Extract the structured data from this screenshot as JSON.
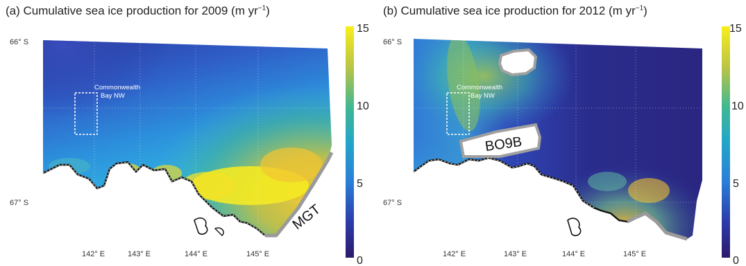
{
  "panels": [
    {
      "id": "a",
      "title_main": "(a) Cumulative sea ice production for 2009 (m yr",
      "title_sup": "−1",
      "title_end": ")",
      "lat_labels": [
        "66° S",
        "67° S"
      ],
      "lon_labels": [
        "142° E",
        "143° E",
        "144° E",
        "145° E"
      ],
      "region_label_1": "Commonwealth",
      "region_label_2": "Bay NW",
      "glacier_label": "MGT",
      "colorbar_ticks": [
        "15",
        "10",
        "5",
        "0"
      ]
    },
    {
      "id": "b",
      "title_main": "(b) Cumulative sea ice production for 2012 (m yr",
      "title_sup": "−1",
      "title_end": ")",
      "lat_labels": [
        "66° S",
        "67° S"
      ],
      "lon_labels": [
        "142° E",
        "143° E",
        "144° E",
        "145° E"
      ],
      "region_label_1": "Commonwealth",
      "region_label_2": "Bay NW",
      "iceberg_label": "BO9B",
      "colorbar_ticks": [
        "15",
        "10",
        "5",
        "0"
      ]
    }
  ],
  "colorbar": {
    "min": 0,
    "max": 15,
    "colors": [
      "#2b1a6b",
      "#2456c8",
      "#1aa0d0",
      "#39b38a",
      "#c9c43a",
      "#f7ee1e"
    ]
  }
}
